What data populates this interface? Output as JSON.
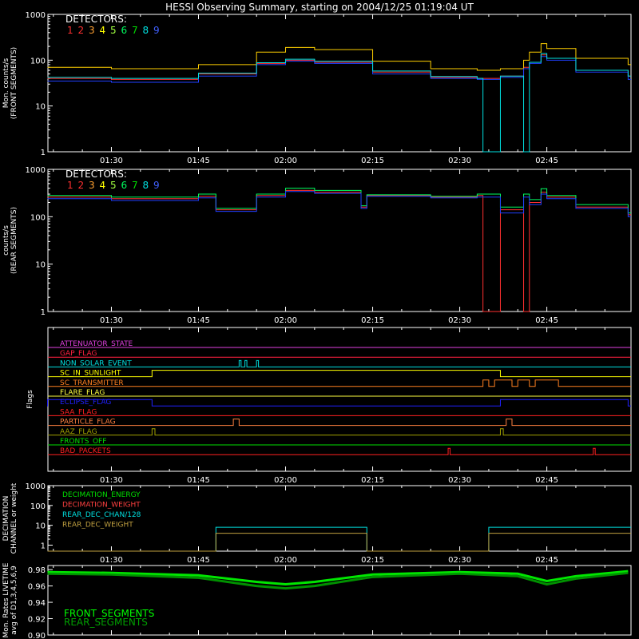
{
  "title": "HESSI Observing Summary, starting on 2004/12/25 01:19:04 UT",
  "colors": {
    "background": "#000000",
    "axes": "#ffffff",
    "detectors": [
      "#ff3030",
      "#ff3030",
      "#ff60c0",
      "#ffd000",
      "#80ff40",
      "#00ff60",
      "#00e000",
      "#00e0e0",
      "#2040ff"
    ],
    "detector_label_colors": [
      "#ff3030",
      "#ff3030",
      "#ffa030",
      "#ffff00",
      "#a0ff40",
      "#00ff60",
      "#00e000",
      "#00e0e0",
      "#4060ff"
    ],
    "front_segments": "#00ff00",
    "rear_segments": "#00a000"
  },
  "time_axis": {
    "start": "01:19:04",
    "end": "02:59:30",
    "tick_labels": [
      "01:30",
      "01:45",
      "02:00",
      "02:15",
      "02:30",
      "02:45"
    ]
  },
  "chart_data": [
    {
      "id": "front",
      "type": "line",
      "ylabel_lines": [
        "Mon. counts/s",
        "(FRONT SEGMENTS)"
      ],
      "yscale": "log",
      "ylim": [
        1,
        1000
      ],
      "ytick_labels": [
        "1",
        "10",
        "100",
        "1000"
      ],
      "legend_title": "DETECTORS:",
      "detector_labels": [
        "1",
        "2",
        "3",
        "4",
        "5",
        "6",
        "7",
        "8",
        "9"
      ],
      "x": [
        "01:19",
        "01:30",
        "01:45",
        "01:55",
        "02:00",
        "02:05",
        "02:15",
        "02:25",
        "02:33",
        "02:34",
        "02:35",
        "02:37",
        "02:41",
        "02:42",
        "02:44",
        "02:45",
        "02:50",
        "02:59"
      ],
      "series": [
        {
          "label": "1",
          "values": [
            40,
            38,
            50,
            85,
            100,
            90,
            55,
            42,
            40,
            40,
            40,
            45,
            70,
            90,
            130,
            110,
            60,
            45
          ]
        },
        {
          "label": "4",
          "values": [
            70,
            65,
            80,
            150,
            190,
            170,
            95,
            65,
            60,
            60,
            60,
            65,
            100,
            150,
            230,
            180,
            110,
            80
          ]
        },
        {
          "label": "9",
          "values": [
            35,
            33,
            45,
            80,
            95,
            85,
            50,
            40,
            38,
            38,
            38,
            42,
            65,
            85,
            120,
            100,
            55,
            38
          ]
        },
        {
          "label": "8",
          "values": [
            42,
            40,
            52,
            88,
            105,
            95,
            58,
            44,
            40,
            1,
            1,
            45,
            1,
            90,
            140,
            110,
            60,
            45
          ]
        }
      ]
    },
    {
      "id": "rear",
      "type": "line",
      "ylabel_lines": [
        "counts/s",
        "(REAR SEGMENTS)"
      ],
      "yscale": "log",
      "ylim": [
        1,
        1000
      ],
      "ytick_labels": [
        "1",
        "10",
        "100",
        "1000"
      ],
      "legend_title": "DETECTORS:",
      "detector_labels": [
        "1",
        "2",
        "3",
        "4",
        "5",
        "6",
        "7",
        "8",
        "9"
      ],
      "x": [
        "01:19",
        "01:30",
        "01:45",
        "01:47",
        "01:48",
        "01:55",
        "02:00",
        "02:05",
        "02:13",
        "02:14",
        "02:25",
        "02:33",
        "02:34",
        "02:35",
        "02:37",
        "02:41",
        "02:42",
        "02:44",
        "02:45",
        "02:50",
        "02:59"
      ],
      "series": [
        {
          "label": "1",
          "values": [
            260,
            240,
            270,
            270,
            140,
            280,
            360,
            330,
            160,
            280,
            260,
            280,
            1,
            1,
            140,
            1,
            200,
            330,
            260,
            160,
            110
          ]
        },
        {
          "label": "6",
          "values": [
            280,
            260,
            300,
            300,
            150,
            300,
            400,
            360,
            170,
            290,
            270,
            300,
            300,
            300,
            160,
            300,
            230,
            390,
            280,
            180,
            120
          ]
        },
        {
          "label": "9",
          "values": [
            240,
            220,
            250,
            250,
            130,
            260,
            340,
            310,
            150,
            270,
            250,
            260,
            260,
            260,
            120,
            260,
            180,
            300,
            240,
            150,
            100
          ]
        }
      ]
    },
    {
      "id": "flags",
      "type": "line",
      "ylabel": "Flags",
      "flags": [
        {
          "name": "ATTENUATOR_STATE",
          "color": "#e040e0",
          "on": []
        },
        {
          "name": "GAP_FLAG",
          "color": "#ff2040",
          "on": []
        },
        {
          "name": "NON_SOLAR_EVENT",
          "color": "#00e0e0",
          "on": [
            [
              "01:52",
              "01:52:20"
            ],
            [
              "01:53",
              "01:53:20"
            ],
            [
              "01:55",
              "01:55:20"
            ]
          ]
        },
        {
          "name": "SC_IN_SUNLIGHT",
          "color": "#ffff00",
          "on": [
            [
              "01:37",
              "02:37"
            ]
          ]
        },
        {
          "name": "SC_TRANSMITTER",
          "color": "#ff8020",
          "on": [
            [
              "02:34",
              "02:35"
            ],
            [
              "02:36",
              "02:39"
            ],
            [
              "02:40",
              "02:42"
            ],
            [
              "02:43",
              "02:47"
            ]
          ]
        },
        {
          "name": "FLARE_FLAG",
          "color": "#ffff40",
          "on": []
        },
        {
          "name": "ECLIPSE_FLAG",
          "color": "#2020ff",
          "on": [
            [
              "01:19",
              "01:37"
            ],
            [
              "02:37",
              "02:59"
            ]
          ]
        },
        {
          "name": "SAA_FLAG",
          "color": "#ff2020",
          "on": []
        },
        {
          "name": "PARTICLE_FLAG",
          "color": "#ff8040",
          "on": [
            [
              "01:51",
              "01:52"
            ],
            [
              "02:38",
              "02:39"
            ]
          ]
        },
        {
          "name": "AAZ_FLAG",
          "color": "#a0a000",
          "on": [
            [
              "01:37",
              "01:37:30"
            ],
            [
              "02:37",
              "02:37:30"
            ]
          ]
        },
        {
          "name": "FRONTS_OFF",
          "color": "#00e000",
          "on": []
        },
        {
          "name": "BAD_PACKETS",
          "color": "#ff2020",
          "on": [
            [
              "02:28",
              "02:28:20"
            ],
            [
              "02:53",
              "02:53:20"
            ]
          ]
        }
      ]
    },
    {
      "id": "decimation",
      "type": "line",
      "ylabel_lines": [
        "DECIMATION",
        "CHANNEL or weight"
      ],
      "yscale": "log",
      "ylim": [
        0.5,
        1000
      ],
      "ytick_labels": [
        "1",
        "10",
        "100",
        "1000"
      ],
      "series": [
        {
          "name": "DECIMATION_ENERGY",
          "color": "#00e000"
        },
        {
          "name": "DECIMATION_WEIGHT",
          "color": "#ff4040"
        },
        {
          "name": "REAR_DEC_CHAN/128",
          "color": "#00e0e0",
          "x": [
            "01:19",
            "01:47",
            "01:48",
            "02:13",
            "02:14",
            "02:34",
            "02:35",
            "02:59"
          ],
          "values": [
            0.5,
            0.5,
            8,
            8,
            0.5,
            0.5,
            8,
            8
          ]
        },
        {
          "name": "REAR_DEC_WEIGHT",
          "color": "#c0a040",
          "x": [
            "01:19",
            "01:47",
            "01:48",
            "02:13",
            "02:14",
            "02:34",
            "02:35",
            "02:59"
          ],
          "values": [
            0.5,
            0.5,
            4,
            4,
            0.5,
            0.5,
            4,
            4
          ]
        }
      ]
    },
    {
      "id": "livetime",
      "type": "line",
      "ylabel_lines": [
        "Mon. Rates LIVETIME",
        "avg of D1,3,4,5,6,9"
      ],
      "ylim": [
        0.9,
        0.985
      ],
      "ytick_labels": [
        "0.90",
        "0.92",
        "0.94",
        "0.96",
        "0.98"
      ],
      "x": [
        "01:19",
        "01:30",
        "01:45",
        "01:55",
        "02:00",
        "02:05",
        "02:15",
        "02:30",
        "02:40",
        "02:45",
        "02:50",
        "02:59"
      ],
      "series": [
        {
          "name": "FRONT_SEGMENTS",
          "values": [
            0.977,
            0.976,
            0.973,
            0.965,
            0.962,
            0.965,
            0.974,
            0.977,
            0.975,
            0.966,
            0.972,
            0.978
          ]
        },
        {
          "name": "REAR_SEGMENTS",
          "values": [
            0.975,
            0.974,
            0.97,
            0.96,
            0.957,
            0.96,
            0.971,
            0.975,
            0.972,
            0.962,
            0.969,
            0.976
          ]
        }
      ]
    }
  ]
}
